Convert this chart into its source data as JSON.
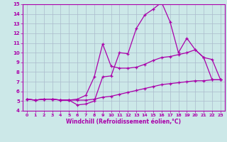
{
  "xlabel": "Windchill (Refroidissement éolien,°C)",
  "xlim": [
    -0.5,
    23.5
  ],
  "ylim": [
    4,
    15
  ],
  "xticks": [
    0,
    1,
    2,
    3,
    4,
    5,
    6,
    7,
    8,
    9,
    10,
    11,
    12,
    13,
    14,
    15,
    16,
    17,
    18,
    19,
    20,
    21,
    22,
    23
  ],
  "yticks": [
    4,
    5,
    6,
    7,
    8,
    9,
    10,
    11,
    12,
    13,
    14,
    15
  ],
  "background_color": "#cce8e8",
  "line_color": "#aa00aa",
  "grid_color": "#aabbcc",
  "line1_x": [
    0,
    1,
    2,
    3,
    4,
    5,
    6,
    7,
    8,
    9,
    10,
    11,
    12,
    13,
    14,
    15,
    16,
    17,
    18,
    19,
    20,
    21,
    22,
    23
  ],
  "line1_y": [
    5.2,
    5.1,
    5.2,
    5.2,
    5.1,
    5.1,
    4.6,
    4.7,
    5.0,
    7.5,
    7.6,
    10.0,
    9.9,
    12.5,
    13.9,
    14.5,
    15.2,
    13.2,
    10.0,
    11.5,
    10.3,
    9.5,
    9.3,
    7.2
  ],
  "line2_x": [
    0,
    1,
    2,
    3,
    4,
    5,
    6,
    7,
    8,
    9,
    10,
    11,
    12,
    13,
    14,
    15,
    16,
    17,
    18,
    19,
    20,
    21,
    22,
    23
  ],
  "line2_y": [
    5.2,
    5.1,
    5.2,
    5.2,
    5.1,
    5.1,
    5.2,
    5.6,
    7.5,
    10.9,
    8.6,
    8.4,
    8.4,
    8.5,
    8.8,
    9.2,
    9.5,
    9.6,
    9.8,
    10.0,
    10.3,
    9.5,
    7.2,
    7.2
  ],
  "line3_x": [
    0,
    1,
    2,
    3,
    4,
    5,
    6,
    7,
    8,
    9,
    10,
    11,
    12,
    13,
    14,
    15,
    16,
    17,
    18,
    19,
    20,
    21,
    22,
    23
  ],
  "line3_y": [
    5.2,
    5.1,
    5.2,
    5.2,
    5.1,
    5.1,
    5.1,
    5.1,
    5.2,
    5.4,
    5.5,
    5.7,
    5.9,
    6.1,
    6.3,
    6.5,
    6.7,
    6.8,
    6.9,
    7.0,
    7.1,
    7.1,
    7.2,
    7.2
  ]
}
